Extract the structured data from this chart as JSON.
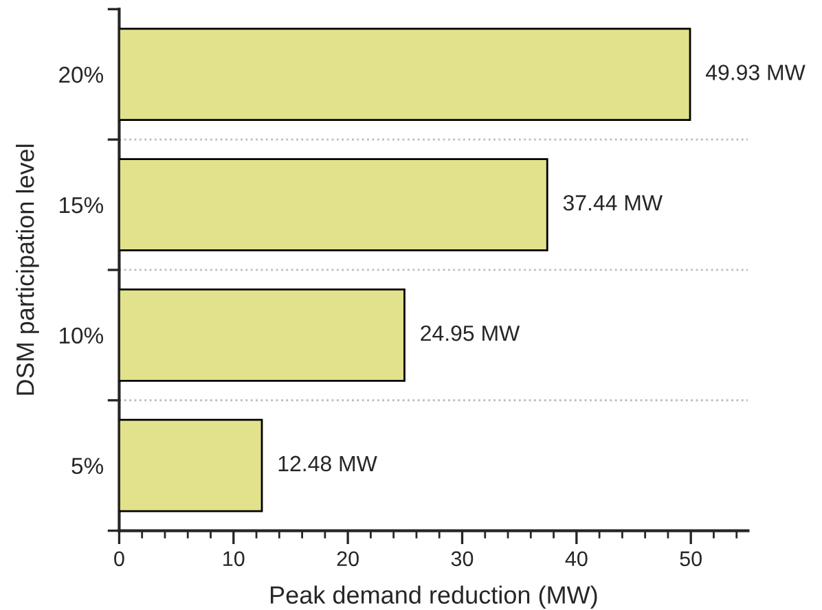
{
  "chart_data": {
    "type": "bar",
    "orientation": "horizontal",
    "xlabel": "Peak demand reduction (MW)",
    "ylabel": "DSM participation level",
    "categories": [
      "20%",
      "15%",
      "10%",
      "5%"
    ],
    "values": [
      49.93,
      37.44,
      24.95,
      12.48
    ],
    "value_labels": [
      "49.93 MW",
      "37.44 MW",
      "24.95 MW",
      "12.48 MW"
    ],
    "color": "#e2e28c",
    "xlim": [
      0,
      55
    ],
    "xticks": [
      0,
      10,
      20,
      30,
      40,
      50
    ],
    "grid": "y"
  }
}
